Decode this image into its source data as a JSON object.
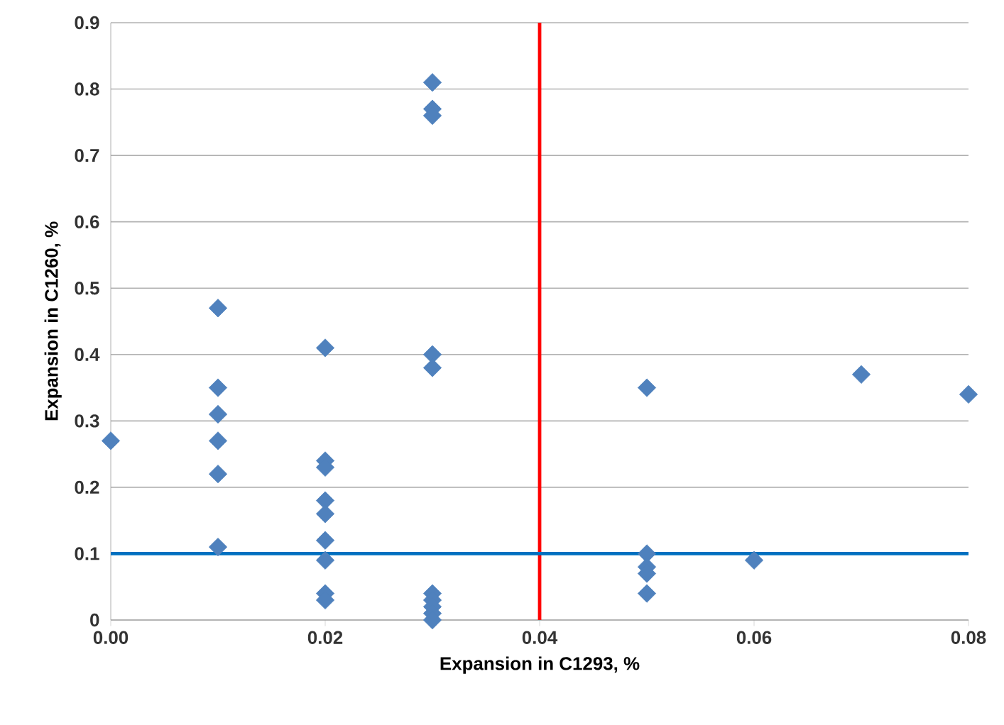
{
  "chart_data": {
    "type": "scatter",
    "xlabel": "Expansion in C1293, %",
    "ylabel": "Expansion in C1260, %",
    "series": [
      {
        "color": "#4f81bd",
        "x": [
          0,
          0.01,
          0.01,
          0.01,
          0.01,
          0.01,
          0.01,
          0.02,
          0.02,
          0.02,
          0.02,
          0.02,
          0.02,
          0.02,
          0.02,
          0.02,
          0.03,
          0.03,
          0.03,
          0.03,
          0.03,
          0.03,
          0.03,
          0.03,
          0.03,
          0.03,
          0.05,
          0.05,
          0.05,
          0.05,
          0.05,
          0.06,
          0.07,
          0.08
        ],
        "values": [
          0.27,
          0.47,
          0.35,
          0.31,
          0.27,
          0.22,
          0.11,
          0.41,
          0.24,
          0.23,
          0.18,
          0.16,
          0.12,
          0.09,
          0.04,
          0.03,
          0.81,
          0.77,
          0.76,
          0.4,
          0.38,
          0.04,
          0.03,
          0.02,
          0.01,
          0.0,
          0.35,
          0.1,
          0.08,
          0.07,
          0.04,
          0.09,
          0.37,
          0.34
        ]
      }
    ],
    "xlim": [
      0,
      0.08
    ],
    "ylim": [
      0,
      0.9
    ],
    "xticks": [
      {
        "value": 0,
        "label": "0.00"
      },
      {
        "value": 0.02,
        "label": "0.02"
      },
      {
        "value": 0.04,
        "label": "0.04"
      },
      {
        "value": 0.06,
        "label": "0.06"
      },
      {
        "value": 0.08,
        "label": "0.08"
      }
    ],
    "yticks": [
      0,
      0.1,
      0.2,
      0.3,
      0.4,
      0.5,
      0.6,
      0.7,
      0.8,
      0.9
    ],
    "ref_lines": [
      {
        "axis": "x",
        "value": 0.04,
        "color": "#ff0000"
      },
      {
        "axis": "y",
        "value": 0.1,
        "color": "#0070c0"
      }
    ],
    "grid": "y",
    "marker": "diamond"
  }
}
